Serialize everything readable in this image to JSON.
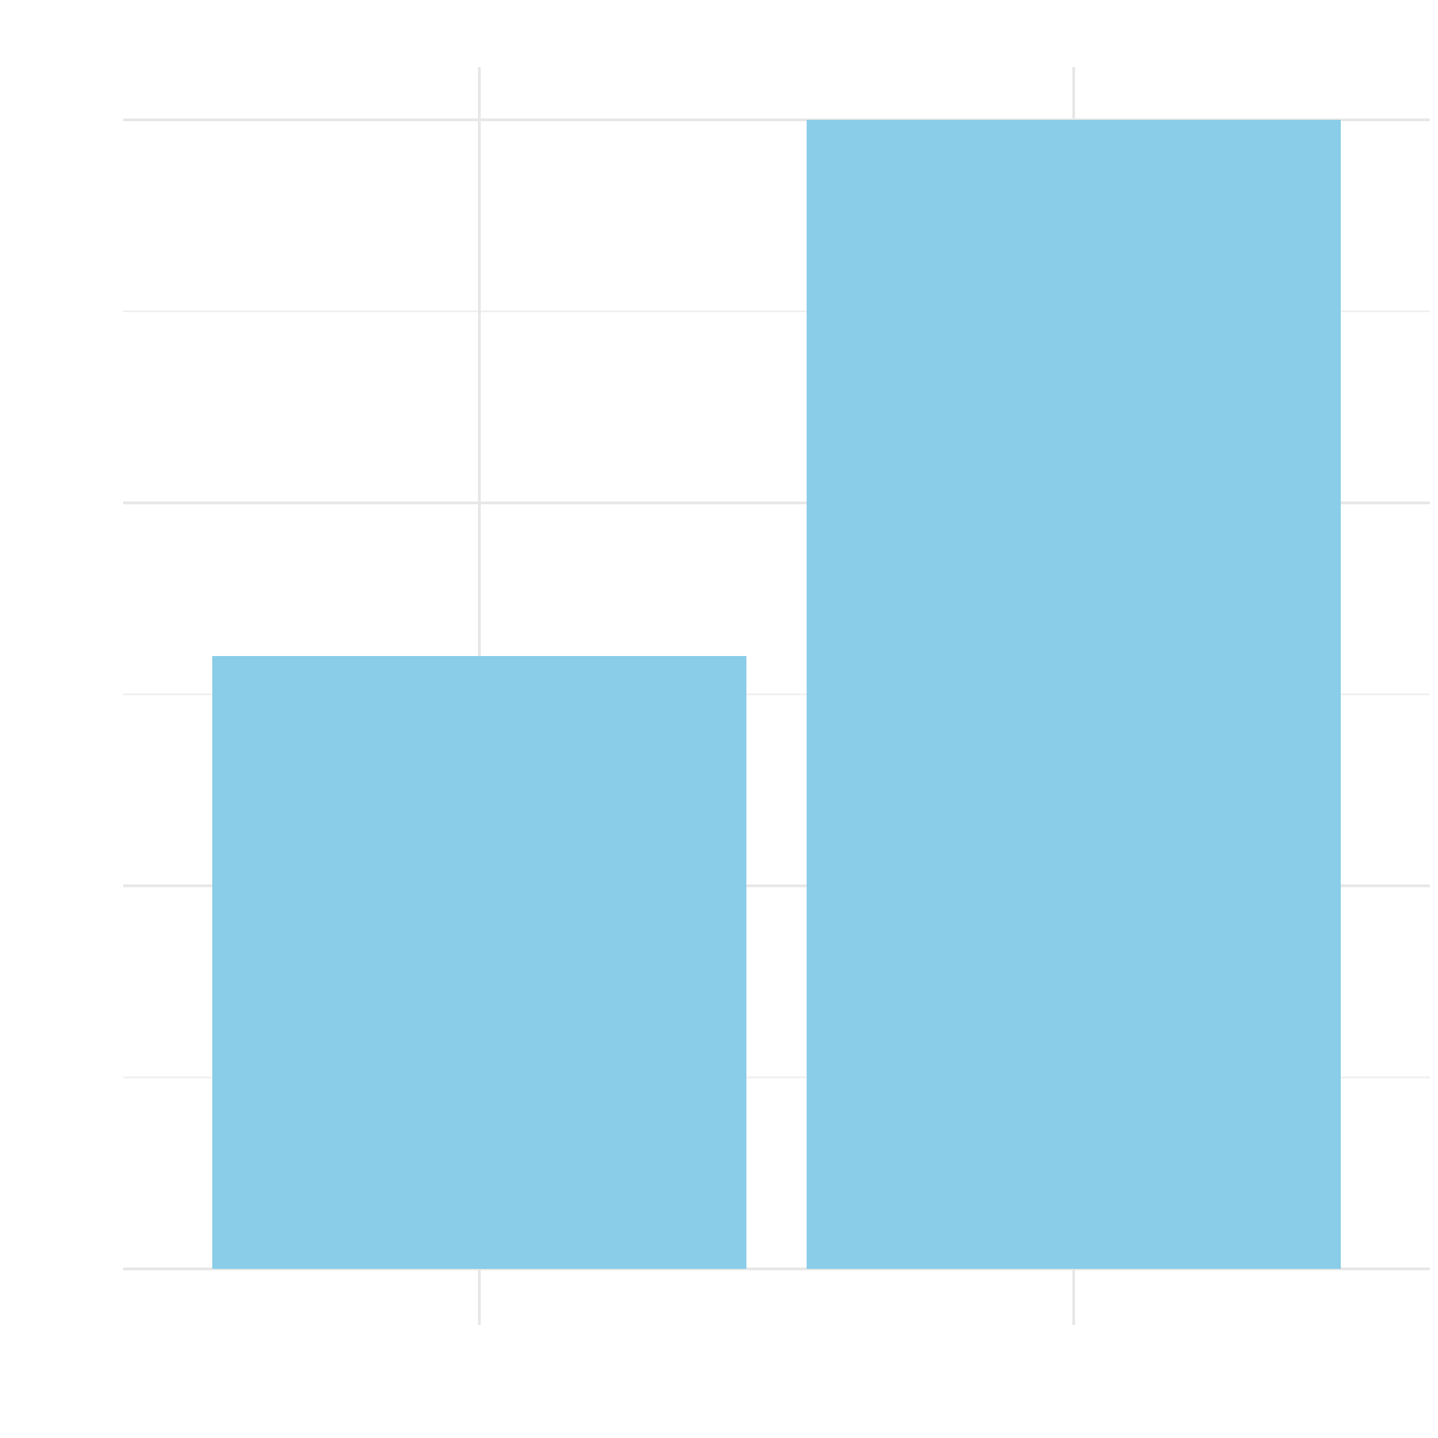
{
  "chart_data": {
    "type": "bar",
    "categories": [
      "",
      ""
    ],
    "values": [
      3.2,
      6.0
    ],
    "ylim": [
      0,
      6.0
    ],
    "y_gridlines": [
      0,
      1,
      2,
      3,
      4,
      5,
      6
    ],
    "grid": true,
    "tick_labels_visible": false,
    "title": "",
    "xlabel": "",
    "ylabel": ""
  },
  "colors": {
    "bar": "#89CDE9",
    "grid_major": "#E7E7E7",
    "grid_minor": "#EFEFEF",
    "background": "#FFFFFF"
  }
}
